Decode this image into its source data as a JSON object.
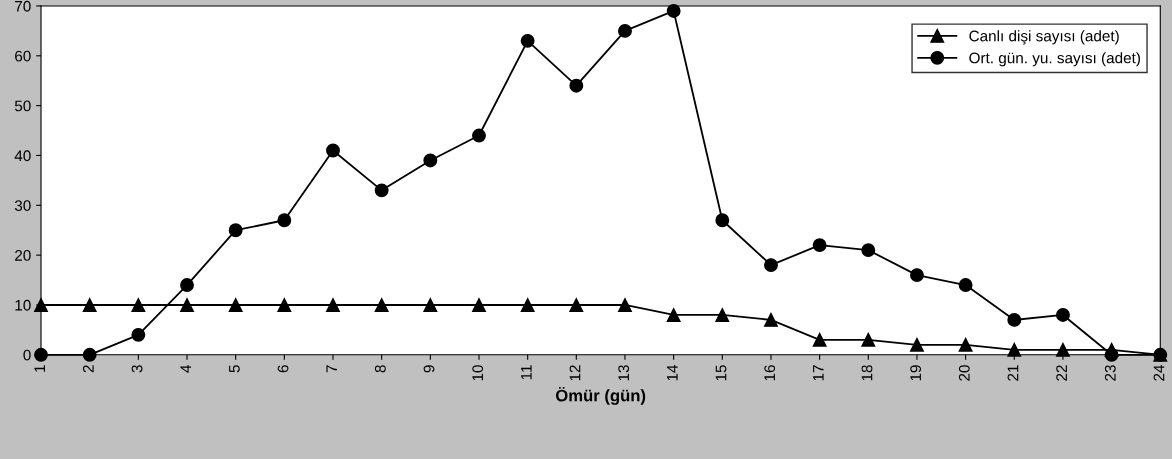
{
  "chart_data": {
    "type": "line",
    "xlabel": "Ömür (gün)",
    "categories": [
      "1",
      "2",
      "3",
      "4",
      "5",
      "6",
      "7",
      "8",
      "9",
      "10",
      "11",
      "12",
      "13",
      "14",
      "15",
      "16",
      "17",
      "18",
      "19",
      "20",
      "21",
      "22",
      "23",
      "24"
    ],
    "series": [
      {
        "name": "Canlı dişi sayısı (adet)",
        "color": "#000000",
        "marker": "triangle",
        "values": [
          10,
          10,
          10,
          10,
          10,
          10,
          10,
          10,
          10,
          10,
          10,
          10,
          10,
          8,
          8,
          7,
          3,
          3,
          2,
          2,
          1,
          1,
          1,
          0
        ]
      },
      {
        "name": "Ort. gün. yu. sayısı (adet)",
        "color": "#000000",
        "marker": "circle",
        "values": [
          0,
          0,
          4,
          14,
          25,
          27,
          41,
          33,
          39,
          44,
          63,
          54,
          65,
          69,
          27,
          18,
          22,
          21,
          16,
          14,
          7,
          8,
          0,
          0
        ]
      }
    ],
    "ylim": [
      0,
      70
    ],
    "yticks": [
      0,
      10,
      20,
      30,
      40,
      50,
      60,
      70
    ],
    "grid": false,
    "legend": "top right",
    "line_style": "solid"
  }
}
